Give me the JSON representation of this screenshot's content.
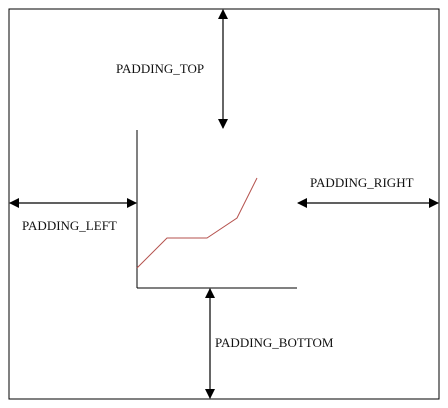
{
  "diagram": {
    "labels": {
      "padding_top": "PADDING_TOP",
      "padding_right": "PADDING_RIGHT",
      "padding_left": "PADDING_LEFT",
      "padding_bottom": "PADDING_BOTTOM"
    },
    "colors": {
      "stroke": "#000000",
      "plot_line": "#b5524e",
      "background": "#ffffff"
    }
  }
}
